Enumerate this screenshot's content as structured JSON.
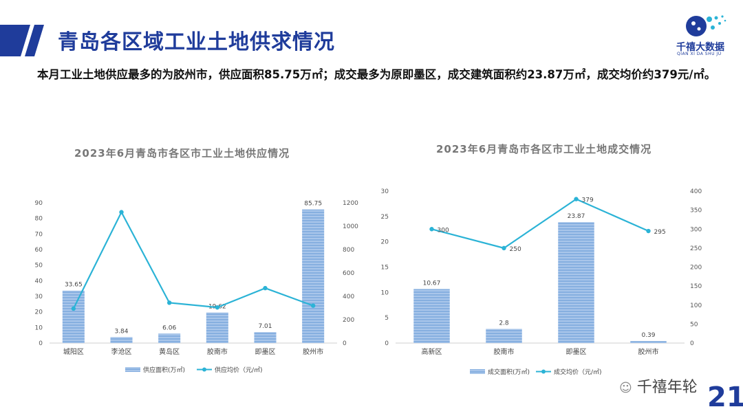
{
  "header": {
    "title": "青岛各区域工业土地供求情况",
    "summary": "本月工业土地供应最多的为胶州市，供应面积85.75万㎡；成交最多为原即墨区，成交建筑面积约23.87万㎡，成交均价约379元/㎡。"
  },
  "logo": {
    "name": "千禧大数据",
    "sub": "QIAN XI DA SHU JU"
  },
  "watermark": "千禧年轮",
  "page_number": "21",
  "colors": {
    "brand": "#1f3c9b",
    "bar": "#86afe0",
    "line": "#2bb3d6"
  },
  "chart_data": [
    {
      "type": "bar",
      "title": "2023年6月青岛市各区市工业土地供应情况",
      "categories": [
        "城阳区",
        "李沧区",
        "黄岛区",
        "胶南市",
        "即墨区",
        "胶州市"
      ],
      "series": [
        {
          "name": "供应面积(万㎡)",
          "type": "bar",
          "axis": "left",
          "values": [
            33.65,
            3.84,
            6.06,
            19.62,
            7.01,
            85.75
          ],
          "labels": [
            "33.65",
            "3.84",
            "6.06",
            "19.62",
            "7.01",
            "85.75"
          ]
        },
        {
          "name": "供应均价（元/㎡)",
          "type": "line",
          "axis": "right",
          "values": [
            295,
            1120,
            345,
            305,
            470,
            320
          ]
        }
      ],
      "ylim_left": [
        0,
        90
      ],
      "yticks_left": [
        "0",
        "10",
        "20",
        "30",
        "40",
        "50",
        "60",
        "70",
        "80",
        "90"
      ],
      "ylim_right": [
        0,
        1200
      ],
      "yticks_right": [
        "0",
        "200",
        "400",
        "600",
        "800",
        "1000",
        "1200"
      ],
      "legend": "bottom"
    },
    {
      "type": "bar",
      "title": "2023年6月青岛市各区市工业土地成交情况",
      "categories": [
        "高新区",
        "胶南市",
        "即墨区",
        "胶州市"
      ],
      "series": [
        {
          "name": "成交面积(万㎡)",
          "type": "bar",
          "axis": "left",
          "values": [
            10.67,
            2.8,
            23.87,
            0.39
          ],
          "labels": [
            "10.67",
            "2.8",
            "23.87",
            "0.39"
          ]
        },
        {
          "name": "成交均价（元/㎡)",
          "type": "line",
          "axis": "right",
          "values": [
            300,
            250,
            379,
            295
          ],
          "labels": [
            "300",
            "250",
            "379",
            "295"
          ]
        }
      ],
      "ylim_left": [
        0,
        30
      ],
      "yticks_left": [
        "0",
        "5",
        "10",
        "15",
        "20",
        "25",
        "30"
      ],
      "ylim_right": [
        0,
        400
      ],
      "yticks_right": [
        "0",
        "50",
        "100",
        "150",
        "200",
        "250",
        "300",
        "350",
        "400"
      ],
      "legend": "bottom"
    }
  ]
}
